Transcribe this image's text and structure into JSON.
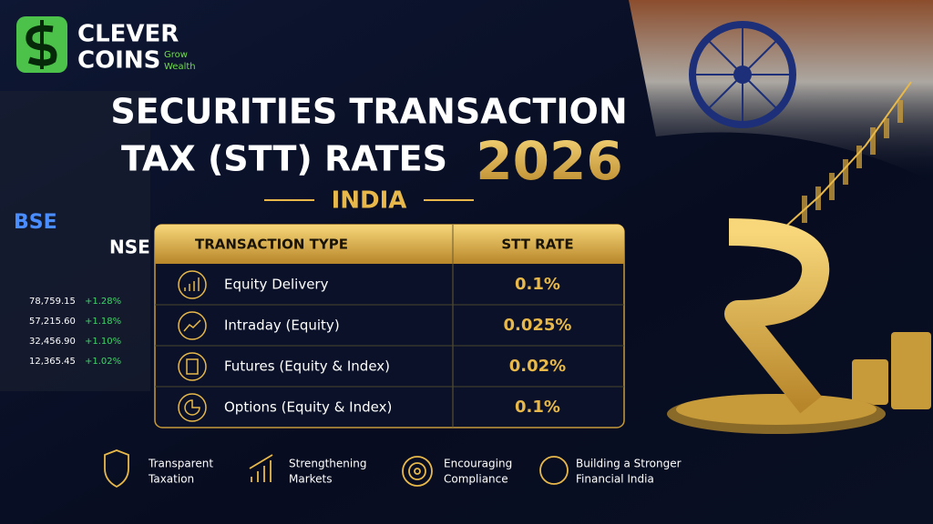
{
  "logo": {
    "line1": "CLEVER",
    "line2": "COINS",
    "tagline": [
      "Grow",
      "Wealth"
    ]
  },
  "header": {
    "title_line1": "SECURITIES TRANSACTION",
    "title_line2": "TAX (STT) RATES",
    "year": "2026",
    "subtitle": "INDIA"
  },
  "market_board": {
    "exchanges": [
      "BSE",
      "NSE"
    ],
    "quotes": [
      {
        "value": "78,759.15",
        "change": "+1.28%"
      },
      {
        "value": "57,215.60",
        "change": "+1.18%"
      },
      {
        "value": "32,456.90",
        "change": "+1.10%"
      },
      {
        "value": "12,365.45",
        "change": "+1.02%"
      }
    ]
  },
  "table": {
    "columns": [
      "TRANSACTION TYPE",
      "STT RATE"
    ],
    "rows": [
      [
        "Equity Delivery",
        "0.1%"
      ],
      [
        "Intraday (Equity)",
        "0.025%"
      ],
      [
        "Futures (Equity & Index)",
        "0.02%"
      ],
      [
        "Options (Equity & Index)",
        "0.1%"
      ]
    ]
  },
  "features": [
    [
      "Transparent",
      "Taxation"
    ],
    [
      "Strengthening",
      "Markets"
    ],
    [
      "Encouraging",
      "Compliance"
    ],
    [
      "Building a Stronger",
      "Financial India"
    ]
  ]
}
